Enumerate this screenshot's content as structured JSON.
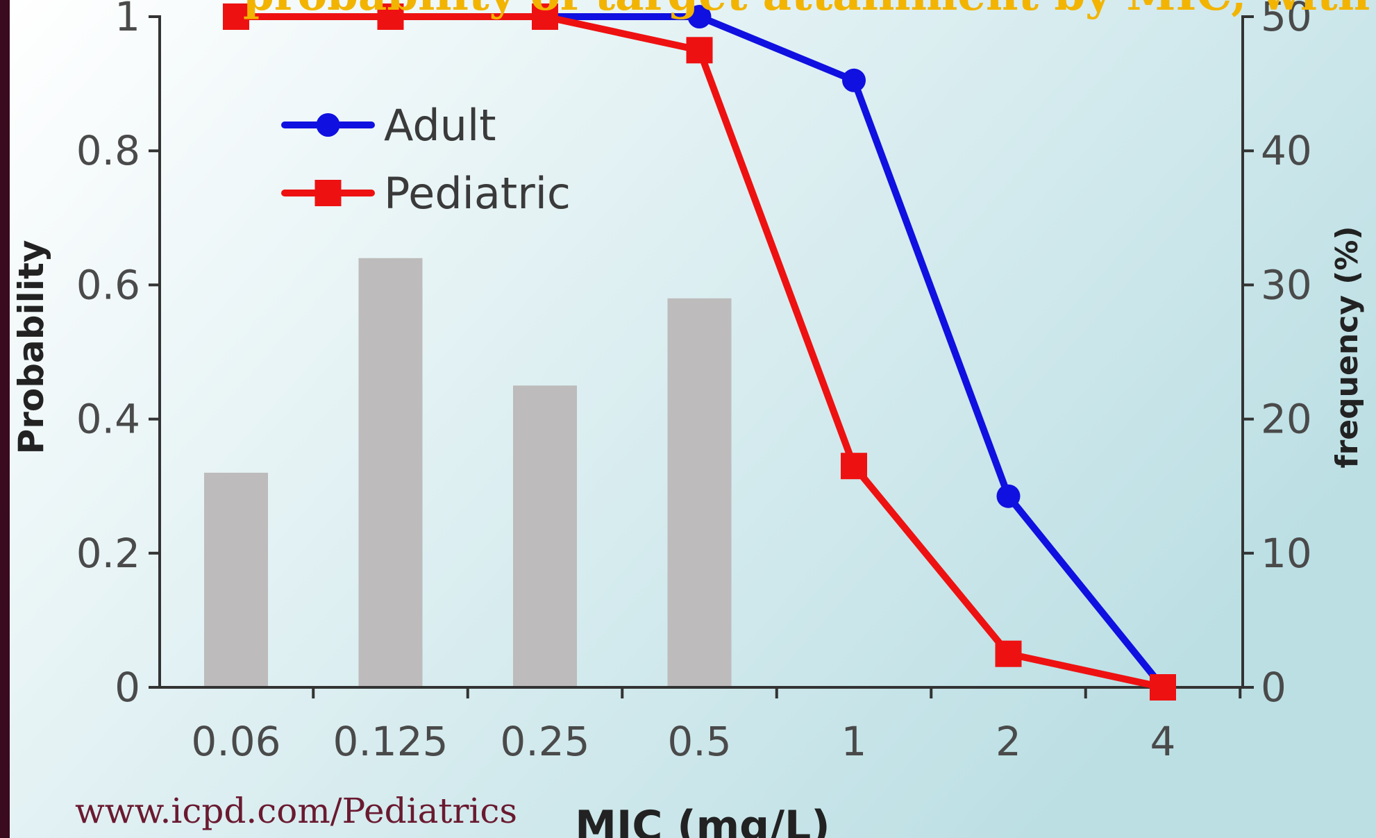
{
  "page": {
    "top_caption": "probability of target attainment by MIC, with MIC frequency histogram",
    "watermark": "www.icpd.com/Pediatrics"
  },
  "colors": {
    "background_outer": "#3a0a1e",
    "plot_gradient_start": "#ffffff",
    "plot_gradient_end": "#bcdfe4",
    "adult": "#1010e0",
    "pediatric": "#ee1111",
    "bars": "#bdbbbb",
    "caption": "#f2b400",
    "watermark": "#6a1a30"
  },
  "chart_data": {
    "type": "line",
    "xlabel": "MIC (mg/L)",
    "ylabel": "Probability",
    "y2label": "frequency (%)",
    "categories": [
      "0.06",
      "0.125",
      "0.25",
      "0.5",
      "1",
      "2",
      "4"
    ],
    "ylim": [
      0,
      1
    ],
    "y2lim": [
      0,
      50
    ],
    "yticks": [
      0,
      0.2,
      0.4,
      0.6,
      0.8,
      1
    ],
    "y2ticks": [
      0,
      10,
      20,
      30,
      40,
      50
    ],
    "legend_placement": "top-left",
    "grid": false,
    "series": [
      {
        "name": "Adult",
        "color": "#1010e0",
        "marker": "circle",
        "values": [
          1.0,
          1.0,
          1.0,
          1.0,
          0.905,
          0.285,
          0.0
        ]
      },
      {
        "name": "Pediatric",
        "color": "#ee1111",
        "marker": "square",
        "values": [
          1.0,
          1.0,
          1.0,
          0.95,
          0.33,
          0.05,
          0.0
        ]
      }
    ],
    "histogram": {
      "name": "frequency (%)",
      "axis": "right",
      "categories": [
        "0.06",
        "0.125",
        "0.25",
        "0.5"
      ],
      "values": [
        16,
        32,
        22.5,
        29
      ]
    }
  }
}
